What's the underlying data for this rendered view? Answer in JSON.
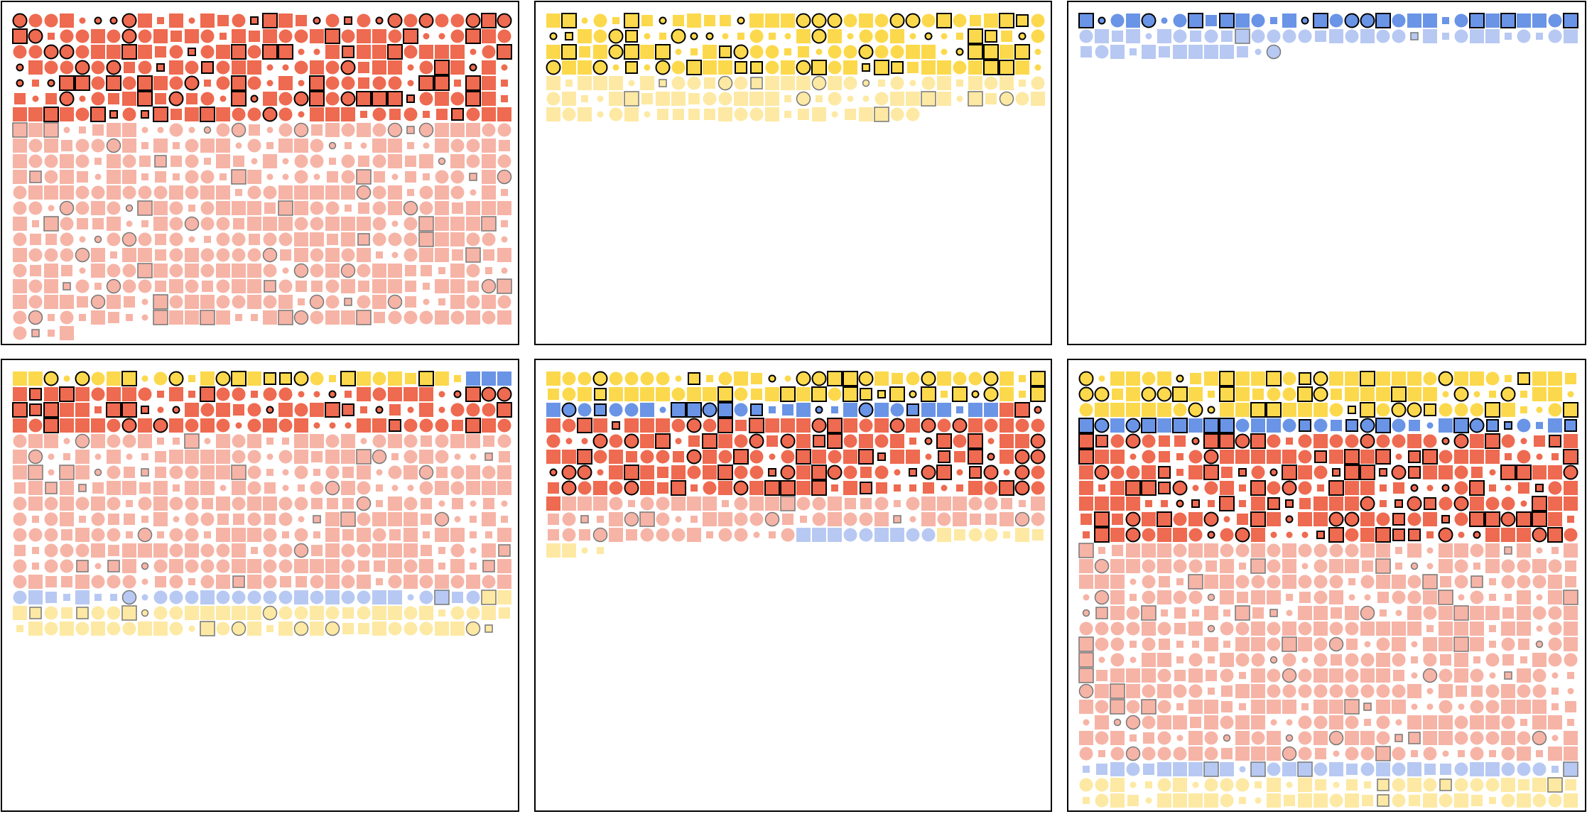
{
  "palette": {
    "red": "#ee6a50",
    "red_light": "#f6b4a6",
    "yellow": "#fcd94c",
    "yellow_light": "#fde9a3",
    "blue": "#6a94e6",
    "blue_light": "#b7c9f2",
    "outline": "#000000",
    "outline_light": "#777777"
  },
  "chart_data": [
    {
      "type": "unit-grid",
      "columns": 32,
      "groups": [
        {
          "color": "red",
          "count": 224
        },
        {
          "color": "red_light",
          "count": 420
        }
      ]
    },
    {
      "type": "unit-grid",
      "columns": 32,
      "groups": [
        {
          "color": "yellow",
          "count": 128
        },
        {
          "color": "yellow_light",
          "count": 88
        }
      ]
    },
    {
      "type": "unit-grid",
      "columns": 32,
      "groups": [
        {
          "color": "blue",
          "count": 32
        },
        {
          "color": "blue_light",
          "count": 45
        }
      ]
    },
    {
      "type": "unit-grid",
      "columns": 32,
      "groups": [
        {
          "color": "yellow",
          "count": 29
        },
        {
          "color": "blue",
          "count": 3
        },
        {
          "color": "red",
          "count": 96
        },
        {
          "color": "red_light",
          "count": 320
        },
        {
          "color": "blue_light",
          "count": 30
        },
        {
          "color": "yellow_light",
          "count": 65
        }
      ]
    },
    {
      "type": "unit-grid",
      "columns": 32,
      "groups": [
        {
          "color": "yellow",
          "count": 64
        },
        {
          "color": "blue",
          "count": 29
        },
        {
          "color": "red",
          "count": 164
        },
        {
          "color": "red_light",
          "count": 79
        },
        {
          "color": "blue_light",
          "count": 9
        },
        {
          "color": "yellow_light",
          "count": 11
        }
      ]
    },
    {
      "type": "unit-grid",
      "columns": 32,
      "groups": [
        {
          "color": "yellow",
          "count": 96
        },
        {
          "color": "blue",
          "count": 32
        },
        {
          "color": "red",
          "count": 224
        },
        {
          "color": "red_light",
          "count": 448
        },
        {
          "color": "blue_light",
          "count": 32
        },
        {
          "color": "yellow_light",
          "count": 64
        }
      ]
    }
  ]
}
